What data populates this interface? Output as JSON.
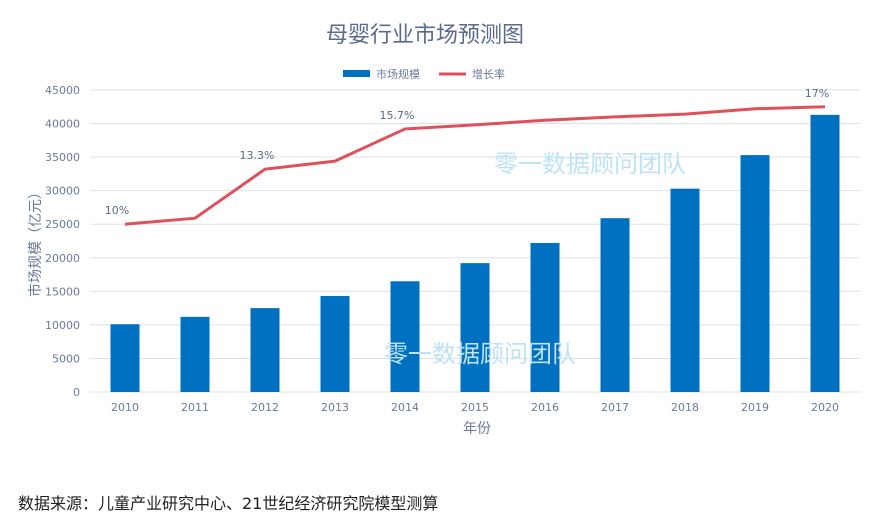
{
  "chart_data": {
    "type": "bar+line",
    "title": "母婴行业市场预测图",
    "xlabel": "年份",
    "ylabel": "市场规模（亿元）",
    "ylim": [
      0,
      45000
    ],
    "yticks": [
      0,
      5000,
      10000,
      15000,
      20000,
      25000,
      30000,
      35000,
      40000,
      45000
    ],
    "grid": true,
    "legend_position": "top-center",
    "categories": [
      "2010",
      "2011",
      "2012",
      "2013",
      "2014",
      "2015",
      "2016",
      "2017",
      "2018",
      "2019",
      "2020"
    ],
    "series": [
      {
        "name": "市场规模",
        "kind": "bar",
        "color": "#0070c0",
        "values": [
          10100,
          11200,
          12500,
          14300,
          16500,
          19200,
          22200,
          25900,
          30300,
          35300,
          41300
        ]
      },
      {
        "name": "增长率",
        "kind": "line",
        "color": "#e0505a",
        "values": [
          25000,
          25900,
          33200,
          34400,
          39200,
          39800,
          40500,
          41000,
          41400,
          42200,
          42500
        ],
        "labels": [
          "10%",
          "",
          "13.3%",
          "",
          "15.7%",
          "",
          "",
          "",
          "",
          "",
          "17%"
        ]
      }
    ],
    "watermark": "零一数据顾问团队"
  },
  "source": "数据来源：儿童产业研究中心、21世纪经济研究院模型测算"
}
